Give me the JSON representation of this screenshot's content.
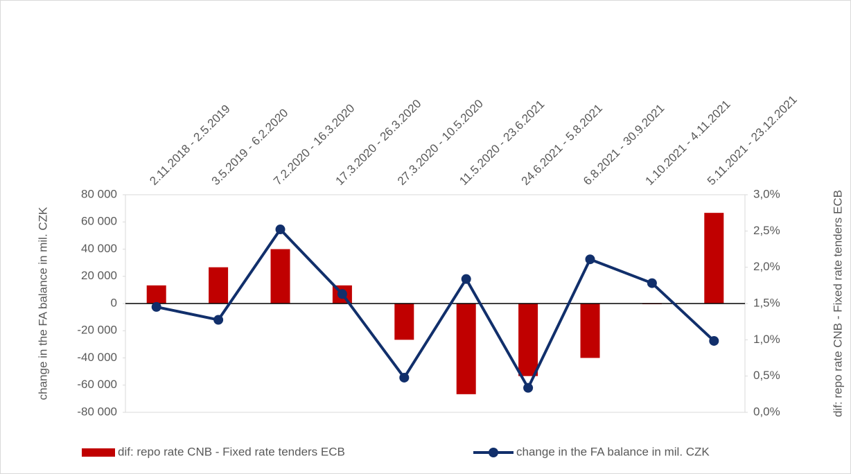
{
  "chart_data": {
    "type": "bar-line",
    "categories": [
      "2.11.2018 - 2.5.2019",
      "3.5.2019 - 6.2.2020",
      "7.2.2020 - 16.3.2020",
      "17.3.2020 - 26.3.2020",
      "27.3.2020 - 10.5.2020",
      "11.5.2020 - 23.6.2021",
      "24.6.2021 - 5.8.2021",
      "6.8.2021 - 30.9.2021",
      "1.10.2021 - 4.11.2021",
      "5.11.2021 - 23.12.2021"
    ],
    "y_label": "change in the FA balance in mil. CZK",
    "y2_label": "dif: repo rate CNB - Fixed rate tenders ECB",
    "ylim": [
      -80000,
      80000
    ],
    "yticks": [
      {
        "value": -80000,
        "label": "-80 000"
      },
      {
        "value": -60000,
        "label": "-60 000"
      },
      {
        "value": -40000,
        "label": "-40 000"
      },
      {
        "value": -20000,
        "label": "-20 000"
      },
      0,
      {
        "value": 20000,
        "label": "20 000"
      },
      {
        "value": 40000,
        "label": "40 000"
      },
      {
        "value": 60000,
        "label": "60 000"
      },
      {
        "value": 80000,
        "label": "80 000"
      }
    ],
    "y2lim": [
      0,
      3
    ],
    "y2ticks": [
      {
        "value": 0,
        "label": "0,0%"
      },
      {
        "value": 0.5,
        "label": "0,5%"
      },
      {
        "value": 1,
        "label": "1,0%"
      },
      {
        "value": 1.5,
        "label": "1,5%"
      },
      {
        "value": 2,
        "label": "2,0%"
      },
      {
        "value": 2.5,
        "label": "2,5%"
      },
      {
        "value": 3,
        "label": "3,0%"
      }
    ],
    "series": [
      {
        "name": "dif: repo rate CNB - Fixed rate tenders ECB",
        "type": "bar",
        "axis": "y2",
        "color": "#c00000",
        "values": [
          1.75,
          2.0,
          2.25,
          1.75,
          1.0,
          0.25,
          0.5,
          0.75,
          1.5,
          2.75
        ]
      },
      {
        "name": "change in the FA balance in mil. CZK",
        "type": "line",
        "axis": "y",
        "color": "#112f6b",
        "values": [
          -2500,
          -12000,
          54500,
          7000,
          -54500,
          18000,
          -62000,
          32500,
          15000,
          -27500
        ]
      }
    ]
  }
}
